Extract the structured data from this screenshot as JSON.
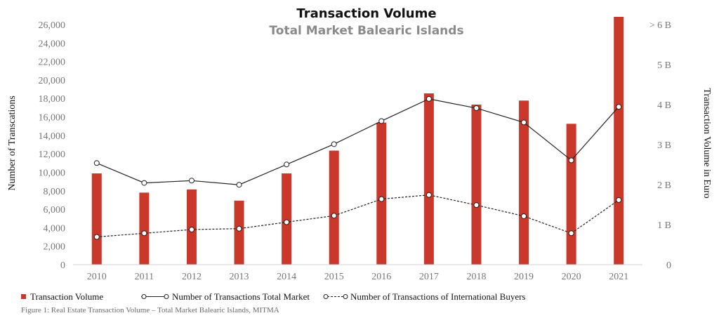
{
  "chart_data": {
    "type": "bar",
    "title": "Transaction Volume",
    "subtitle": "Total Market Balearic Islands",
    "ylabel_left": "Number of Transcations",
    "ylabel_right": "Transaction Volume in Euro",
    "categories": [
      "2010",
      "2011",
      "2012",
      "2013",
      "2014",
      "2015",
      "2016",
      "2017",
      "2018",
      "2019",
      "2020",
      "2021"
    ],
    "ylim_left": [
      0,
      26000
    ],
    "yticks_left": [
      "0",
      "2,000",
      "4,000",
      "6,000",
      "8,000",
      "10,000",
      "12,000",
      "14,000",
      "16,000",
      "18,000",
      "20,000",
      "22,000",
      "24,000",
      "26,000"
    ],
    "ylim_right": [
      0,
      6
    ],
    "yticks_right": [
      "0",
      "1 B",
      "2 B",
      "3 B",
      "4 B",
      "5 B",
      "> 6 B"
    ],
    "series": [
      {
        "name": "Transaction Volume",
        "kind": "bar",
        "axis": "right",
        "color": "#c9382b",
        "values": [
          2.28,
          1.8,
          1.88,
          1.6,
          2.28,
          2.85,
          3.55,
          4.28,
          4.0,
          4.1,
          3.52,
          6.2
        ]
      },
      {
        "name": "Number of Transactions Total Market",
        "kind": "line",
        "axis": "left",
        "color": "#222222",
        "values": [
          11000,
          8850,
          9100,
          8650,
          10850,
          13050,
          15550,
          17950,
          16950,
          15400,
          11300,
          17100
        ]
      },
      {
        "name": "Number of Transactions of International Buyers",
        "kind": "line-dashed",
        "axis": "left",
        "color": "#222222",
        "values": [
          3000,
          3400,
          3800,
          3900,
          4600,
          5300,
          7100,
          7550,
          6450,
          5250,
          3400,
          7000
        ]
      }
    ],
    "grid": false,
    "legend": "bottom-left"
  },
  "caption": "Figure 1: Real Estate Transaction Volume – Total Market Balearic Islands, MITMA"
}
